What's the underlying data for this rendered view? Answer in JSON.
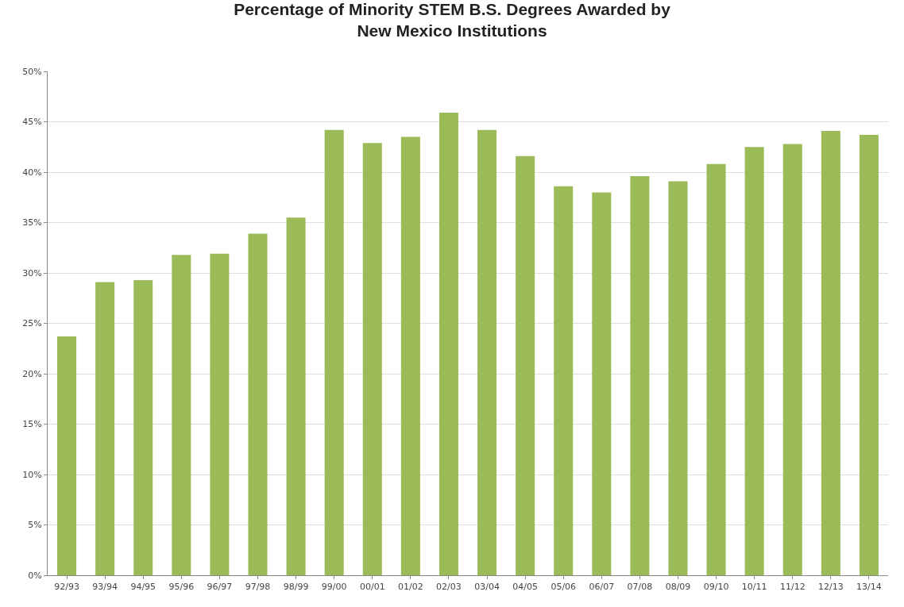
{
  "chart_data": {
    "type": "bar",
    "title": "Percentage of Minority STEM B.S. Degrees Awarded by\nNew Mexico Institutions",
    "categories": [
      "92/93",
      "93/94",
      "94/95",
      "95/96",
      "96/97",
      "97/98",
      "98/99",
      "99/00",
      "00/01",
      "01/02",
      "02/03",
      "03/04",
      "04/05",
      "05/06",
      "06/07",
      "07/08",
      "08/09",
      "09/10",
      "10/11",
      "11/12",
      "12/13",
      "13/14"
    ],
    "values": [
      23.7,
      29.1,
      29.3,
      31.8,
      31.9,
      33.9,
      35.5,
      44.2,
      42.9,
      43.5,
      45.9,
      44.2,
      41.6,
      38.6,
      38.0,
      39.6,
      39.1,
      40.8,
      42.5,
      42.8,
      44.1,
      43.7
    ],
    "color": "#9bbb59",
    "ylim": [
      0,
      50
    ],
    "yticks": [
      {
        "value": 0,
        "label": "0%"
      },
      {
        "value": 5,
        "label": "5%"
      },
      {
        "value": 10,
        "label": "10%"
      },
      {
        "value": 15,
        "label": "15%"
      },
      {
        "value": 20,
        "label": "20%"
      },
      {
        "value": 25,
        "label": "25%"
      },
      {
        "value": 30,
        "label": "30%"
      },
      {
        "value": 35,
        "label": "35%"
      },
      {
        "value": 40,
        "label": "40%"
      },
      {
        "value": 45,
        "label": "45%"
      },
      {
        "value": 50,
        "label": "50%"
      }
    ],
    "grid": "y"
  }
}
